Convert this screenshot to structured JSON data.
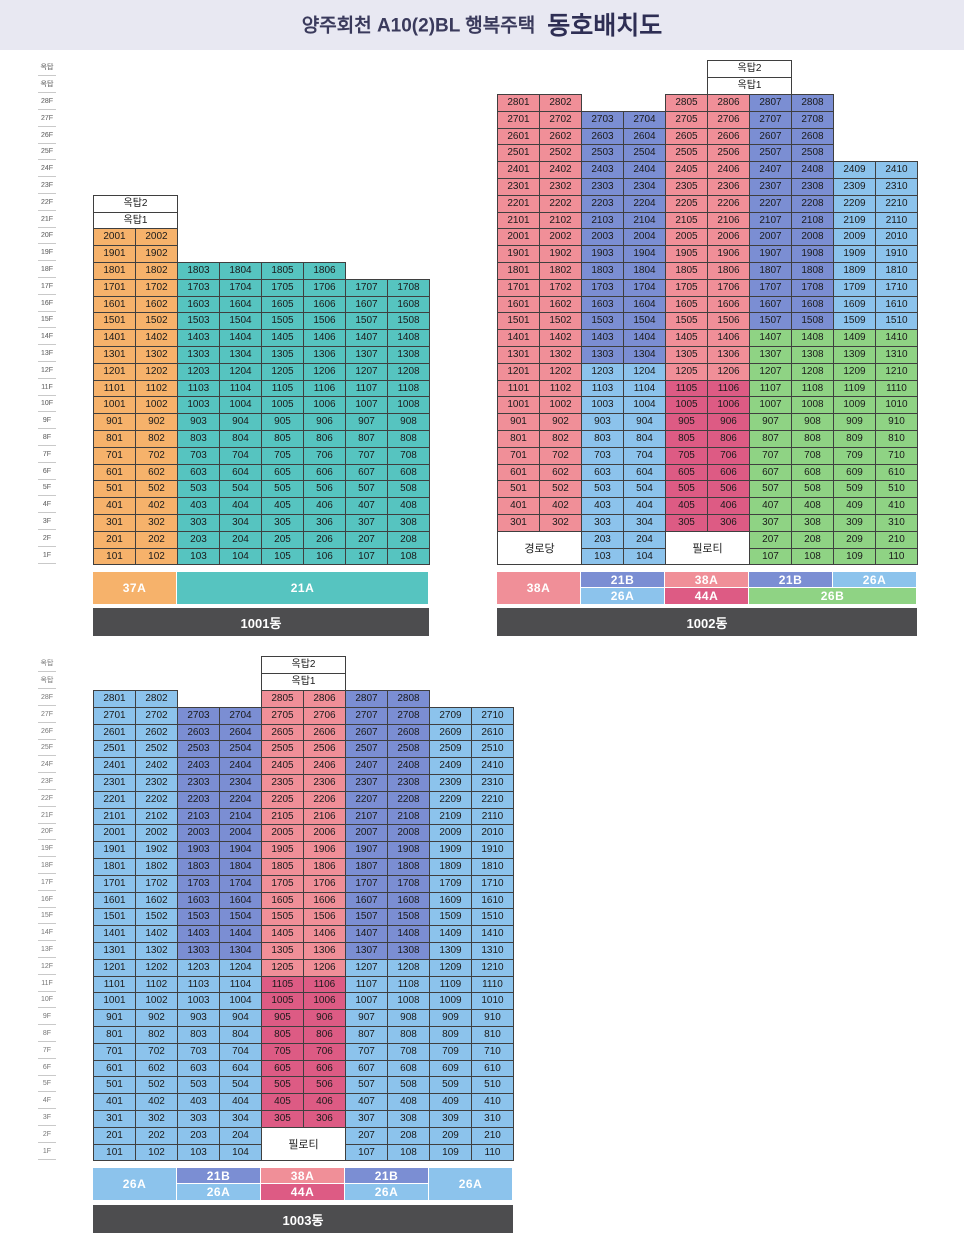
{
  "title": {
    "name": "양주회천 A10(2)BL 행복주택",
    "main": "동호배치도"
  },
  "floor_labels": [
    "옥탑",
    "옥탑",
    "28F",
    "27F",
    "26F",
    "25F",
    "24F",
    "23F",
    "22F",
    "21F",
    "20F",
    "19F",
    "18F",
    "17F",
    "16F",
    "15F",
    "14F",
    "13F",
    "12F",
    "11F",
    "10F",
    "9F",
    "8F",
    "7F",
    "6F",
    "5F",
    "4F",
    "3F",
    "2F",
    "1F"
  ],
  "colors": {
    "37A": "#f6b26b",
    "21A": "#56c4c0",
    "38A": "#f08f98",
    "21B": "#7b8ed3",
    "26A": "#8cc3ec",
    "44A": "#dd5b84",
    "26B": "#8fd384",
    "roof": "#ffffff",
    "footer": "#4d4d4f"
  },
  "buildings": [
    {
      "label": "1001동",
      "columns": [
        {
          "line": 1,
          "type": "37A",
          "top": 20,
          "bottom": 1,
          "roof": [
            "옥탑2",
            "옥탑1"
          ]
        },
        {
          "line": 2,
          "type": "37A",
          "top": 20,
          "bottom": 1
        },
        {
          "line": 3,
          "type": "21A",
          "top": 18,
          "bottom": 1
        },
        {
          "line": 4,
          "type": "21A",
          "top": 18,
          "bottom": 1
        },
        {
          "line": 5,
          "type": "21A",
          "top": 18,
          "bottom": 1
        },
        {
          "line": 6,
          "type": "21A",
          "top": 18,
          "bottom": 1
        },
        {
          "line": 7,
          "type": "21A",
          "top": 17,
          "bottom": 1
        },
        {
          "line": 8,
          "type": "21A",
          "top": 17,
          "bottom": 1
        }
      ],
      "specials": [],
      "type_bar": [
        {
          "span": [
            0,
            2
          ],
          "rows": [
            {
              "label": "37A",
              "type": "37A"
            }
          ]
        },
        {
          "span": [
            2,
            8
          ],
          "rows": [
            {
              "label": "21A",
              "type": "21A"
            }
          ]
        }
      ]
    },
    {
      "label": "1002동",
      "columns": [
        {
          "line": 1,
          "type": "38A",
          "top": 28,
          "bottom": 3
        },
        {
          "line": 2,
          "type": "38A",
          "top": 28,
          "bottom": 3
        },
        {
          "line": 3,
          "type": "21B",
          "top": 27,
          "bottom": 1,
          "over": {
            "12": "26A",
            "11": "26A",
            "10": "26A",
            "9": "26A",
            "8": "26A",
            "7": "26A",
            "6": "26A",
            "5": "26A",
            "4": "26A",
            "3": "26A",
            "2": "26A",
            "1": "26A"
          }
        },
        {
          "line": 4,
          "type": "21B",
          "top": 27,
          "bottom": 1,
          "over": {
            "12": "26A",
            "11": "26A",
            "10": "26A",
            "9": "26A",
            "8": "26A",
            "7": "26A",
            "6": "26A",
            "5": "26A",
            "4": "26A",
            "3": "26A",
            "2": "26A",
            "1": "26A"
          }
        },
        {
          "line": 5,
          "type": "38A",
          "top": 28,
          "bottom": 3,
          "over": {
            "11": "44A",
            "10": "44A",
            "9": "44A",
            "8": "44A",
            "7": "44A",
            "6": "44A",
            "5": "44A",
            "4": "44A",
            "3": "44A"
          }
        },
        {
          "line": 6,
          "type": "38A",
          "top": 28,
          "bottom": 3,
          "roof": [
            "옥탑2",
            "옥탑1"
          ],
          "over": {
            "11": "44A",
            "10": "44A",
            "9": "44A",
            "8": "44A",
            "7": "44A",
            "6": "44A",
            "5": "44A",
            "4": "44A",
            "3": "44A"
          }
        },
        {
          "line": 7,
          "type": "21B",
          "top": 28,
          "bottom": 1,
          "over": {
            "14": "26B",
            "13": "26B",
            "12": "26B",
            "11": "26B",
            "10": "26B",
            "9": "26B",
            "8": "26B",
            "7": "26B",
            "6": "26B",
            "5": "26B",
            "4": "26B",
            "3": "26B",
            "2": "26B",
            "1": "26B"
          }
        },
        {
          "line": 8,
          "type": "21B",
          "top": 28,
          "bottom": 1,
          "over": {
            "14": "26B",
            "13": "26B",
            "12": "26B",
            "11": "26B",
            "10": "26B",
            "9": "26B",
            "8": "26B",
            "7": "26B",
            "6": "26B",
            "5": "26B",
            "4": "26B",
            "3": "26B",
            "2": "26B",
            "1": "26B"
          }
        },
        {
          "line": 9,
          "type": "26A",
          "top": 24,
          "bottom": 1,
          "over": {
            "14": "26B",
            "13": "26B",
            "12": "26B",
            "11": "26B",
            "10": "26B",
            "9": "26B",
            "8": "26B",
            "7": "26B",
            "6": "26B",
            "5": "26B",
            "4": "26B",
            "3": "26B",
            "2": "26B",
            "1": "26B"
          }
        },
        {
          "line": 10,
          "type": "26A",
          "top": 24,
          "bottom": 1,
          "over": {
            "14": "26B",
            "13": "26B",
            "12": "26B",
            "11": "26B",
            "10": "26B",
            "9": "26B",
            "8": "26B",
            "7": "26B",
            "6": "26B",
            "5": "26B",
            "4": "26B",
            "3": "26B",
            "2": "26B",
            "1": "26B"
          }
        }
      ],
      "specials": [
        {
          "label": "경로당",
          "col_start": 0,
          "col_end": 2,
          "floor_top": 2,
          "floor_bottom": 1
        },
        {
          "label": "필로티",
          "col_start": 4,
          "col_end": 6,
          "floor_top": 2,
          "floor_bottom": 1
        }
      ],
      "type_bar": [
        {
          "span": [
            0,
            2
          ],
          "rows": [
            {
              "label": "38A",
              "type": "38A"
            }
          ]
        },
        {
          "span": [
            2,
            4
          ],
          "rows": [
            {
              "label": "21B",
              "type": "21B"
            },
            {
              "label": "26A",
              "type": "26A"
            }
          ]
        },
        {
          "span": [
            4,
            6
          ],
          "rows": [
            {
              "label": "38A",
              "type": "38A"
            },
            {
              "label": "44A",
              "type": "44A"
            }
          ]
        },
        {
          "span": [
            6,
            10
          ],
          "rows": [
            {
              "parts": [
                {
                  "span": [
                    6,
                    8
                  ],
                  "label": "21B",
                  "type": "21B"
                },
                {
                  "span": [
                    8,
                    10
                  ],
                  "label": "26A",
                  "type": "26A"
                }
              ]
            },
            {
              "label": "26B",
              "type": "26B"
            }
          ]
        }
      ]
    },
    {
      "label": "1003동",
      "columns": [
        {
          "line": 1,
          "type": "26A",
          "top": 28,
          "bottom": 1
        },
        {
          "line": 2,
          "type": "26A",
          "top": 28,
          "bottom": 1
        },
        {
          "line": 3,
          "type": "21B",
          "top": 27,
          "bottom": 1,
          "over": {
            "12": "26A",
            "11": "26A",
            "10": "26A",
            "9": "26A",
            "8": "26A",
            "7": "26A",
            "6": "26A",
            "5": "26A",
            "4": "26A",
            "3": "26A",
            "2": "26A",
            "1": "26A"
          }
        },
        {
          "line": 4,
          "type": "21B",
          "top": 27,
          "bottom": 1,
          "over": {
            "12": "26A",
            "11": "26A",
            "10": "26A",
            "9": "26A",
            "8": "26A",
            "7": "26A",
            "6": "26A",
            "5": "26A",
            "4": "26A",
            "3": "26A",
            "2": "26A",
            "1": "26A"
          }
        },
        {
          "line": 5,
          "type": "38A",
          "top": 28,
          "bottom": 3,
          "roof": [
            "옥탑2",
            "옥탑1"
          ],
          "over": {
            "11": "44A",
            "10": "44A",
            "9": "44A",
            "8": "44A",
            "7": "44A",
            "6": "44A",
            "5": "44A",
            "4": "44A",
            "3": "44A"
          }
        },
        {
          "line": 6,
          "type": "38A",
          "top": 28,
          "bottom": 3,
          "over": {
            "11": "44A",
            "10": "44A",
            "9": "44A",
            "8": "44A",
            "7": "44A",
            "6": "44A",
            "5": "44A",
            "4": "44A",
            "3": "44A"
          }
        },
        {
          "line": 7,
          "type": "21B",
          "top": 28,
          "bottom": 1,
          "over": {
            "12": "26A",
            "11": "26A",
            "10": "26A",
            "9": "26A",
            "8": "26A",
            "7": "26A",
            "6": "26A",
            "5": "26A",
            "4": "26A",
            "3": "26A",
            "2": "26A",
            "1": "26A"
          }
        },
        {
          "line": 8,
          "type": "21B",
          "top": 28,
          "bottom": 1,
          "over": {
            "12": "26A",
            "11": "26A",
            "10": "26A",
            "9": "26A",
            "8": "26A",
            "7": "26A",
            "6": "26A",
            "5": "26A",
            "4": "26A",
            "3": "26A",
            "2": "26A",
            "1": "26A"
          }
        },
        {
          "line": 9,
          "type": "26A",
          "top": 27,
          "bottom": 1
        },
        {
          "line": 10,
          "type": "26A",
          "top": 27,
          "bottom": 1
        }
      ],
      "specials": [
        {
          "label": "필로티",
          "col_start": 4,
          "col_end": 6,
          "floor_top": 2,
          "floor_bottom": 1
        }
      ],
      "type_bar": [
        {
          "span": [
            0,
            2
          ],
          "rows": [
            {
              "label": "26A",
              "type": "26A"
            }
          ]
        },
        {
          "span": [
            2,
            4
          ],
          "rows": [
            {
              "label": "21B",
              "type": "21B"
            },
            {
              "label": "26A",
              "type": "26A"
            }
          ]
        },
        {
          "span": [
            4,
            6
          ],
          "rows": [
            {
              "label": "38A",
              "type": "38A"
            },
            {
              "label": "44A",
              "type": "44A"
            }
          ]
        },
        {
          "span": [
            6,
            8
          ],
          "rows": [
            {
              "label": "21B",
              "type": "21B"
            },
            {
              "label": "26A",
              "type": "26A"
            }
          ]
        },
        {
          "span": [
            8,
            10
          ],
          "rows": [
            {
              "label": "26A",
              "type": "26A"
            }
          ]
        }
      ]
    }
  ]
}
